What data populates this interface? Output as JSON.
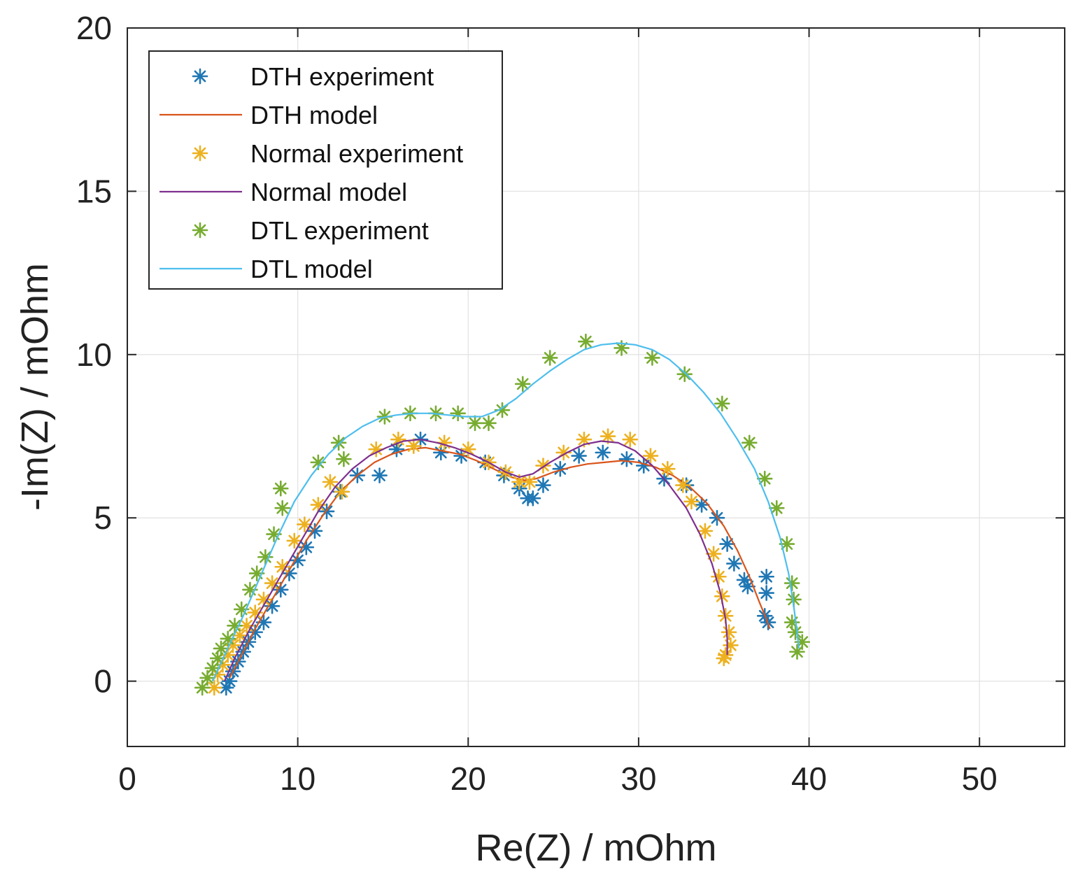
{
  "chart_data": {
    "type": "scatter",
    "title": "",
    "xlabel": "Re(Z) / mOhm",
    "ylabel": "-Im(Z) / mOhm",
    "xlim": [
      0,
      55
    ],
    "ylim": [
      -2,
      20
    ],
    "xticks": [
      0,
      10,
      20,
      30,
      40,
      50
    ],
    "yticks": [
      0,
      5,
      10,
      15,
      20
    ],
    "grid": true,
    "legend_position": "top-left",
    "series": [
      {
        "name": "DTH experiment",
        "kind": "markers",
        "color": "#1f77b4",
        "points": [
          [
            5.8,
            -0.2
          ],
          [
            6.0,
            0.0
          ],
          [
            6.2,
            0.3
          ],
          [
            6.5,
            0.6
          ],
          [
            6.8,
            0.9
          ],
          [
            7.1,
            1.2
          ],
          [
            7.5,
            1.5
          ],
          [
            8.0,
            1.8
          ],
          [
            8.5,
            2.3
          ],
          [
            9.0,
            2.8
          ],
          [
            9.5,
            3.3
          ],
          [
            10.0,
            3.7
          ],
          [
            10.5,
            4.1
          ],
          [
            11.0,
            4.6
          ],
          [
            11.7,
            5.2
          ],
          [
            12.5,
            5.8
          ],
          [
            13.5,
            6.3
          ],
          [
            14.8,
            6.3
          ],
          [
            15.8,
            7.1
          ],
          [
            17.2,
            7.4
          ],
          [
            18.4,
            7.0
          ],
          [
            19.6,
            6.9
          ],
          [
            21.0,
            6.7
          ],
          [
            22.1,
            6.3
          ],
          [
            23.0,
            5.9
          ],
          [
            23.5,
            5.6
          ],
          [
            23.8,
            5.6
          ],
          [
            24.4,
            6.0
          ],
          [
            25.4,
            6.5
          ],
          [
            26.5,
            6.9
          ],
          [
            27.9,
            7.0
          ],
          [
            29.3,
            6.8
          ],
          [
            30.3,
            6.6
          ],
          [
            31.5,
            6.2
          ],
          [
            32.8,
            6.0
          ],
          [
            33.7,
            5.4
          ],
          [
            34.6,
            5.0
          ],
          [
            35.2,
            4.2
          ],
          [
            35.6,
            3.6
          ],
          [
            36.2,
            3.1
          ],
          [
            36.4,
            2.9
          ],
          [
            37.5,
            3.2
          ],
          [
            37.5,
            2.7
          ],
          [
            37.4,
            2.0
          ],
          [
            37.6,
            1.8
          ]
        ]
      },
      {
        "name": "DTH model",
        "kind": "line",
        "color": "#d9541a",
        "points": [
          [
            6.0,
            0.1
          ],
          [
            6.6,
            0.7
          ],
          [
            7.5,
            1.6
          ],
          [
            8.5,
            2.5
          ],
          [
            9.5,
            3.4
          ],
          [
            10.5,
            4.3
          ],
          [
            11.5,
            5.1
          ],
          [
            12.5,
            5.8
          ],
          [
            13.5,
            6.3
          ],
          [
            14.5,
            6.7
          ],
          [
            15.5,
            6.95
          ],
          [
            16.5,
            7.1
          ],
          [
            17.5,
            7.15
          ],
          [
            18.5,
            7.05
          ],
          [
            19.5,
            6.95
          ],
          [
            20.5,
            6.75
          ],
          [
            21.5,
            6.5
          ],
          [
            22.5,
            6.25
          ],
          [
            23.3,
            6.15
          ],
          [
            24.0,
            6.2
          ],
          [
            25.0,
            6.4
          ],
          [
            26.0,
            6.55
          ],
          [
            27.0,
            6.65
          ],
          [
            28.0,
            6.7
          ],
          [
            29.0,
            6.75
          ],
          [
            30.0,
            6.7
          ],
          [
            31.0,
            6.55
          ],
          [
            32.0,
            6.3
          ],
          [
            33.0,
            5.95
          ],
          [
            34.0,
            5.45
          ],
          [
            35.0,
            4.75
          ],
          [
            35.8,
            4.0
          ],
          [
            36.5,
            3.2
          ],
          [
            37.1,
            2.4
          ],
          [
            37.5,
            1.9
          ],
          [
            37.7,
            1.6
          ]
        ]
      },
      {
        "name": "Normal experiment",
        "kind": "markers",
        "color": "#edb120",
        "points": [
          [
            5.1,
            -0.2
          ],
          [
            5.3,
            0.2
          ],
          [
            5.6,
            0.5
          ],
          [
            5.9,
            0.8
          ],
          [
            6.2,
            1.1
          ],
          [
            6.6,
            1.4
          ],
          [
            7.0,
            1.7
          ],
          [
            7.5,
            2.1
          ],
          [
            8.0,
            2.5
          ],
          [
            8.5,
            3.0
          ],
          [
            9.1,
            3.5
          ],
          [
            9.8,
            4.3
          ],
          [
            10.4,
            4.8
          ],
          [
            11.2,
            5.4
          ],
          [
            11.9,
            6.1
          ],
          [
            12.6,
            5.8
          ],
          [
            14.6,
            7.1
          ],
          [
            15.9,
            7.4
          ],
          [
            16.8,
            7.2
          ],
          [
            18.6,
            7.3
          ],
          [
            20.0,
            7.1
          ],
          [
            21.2,
            6.7
          ],
          [
            22.2,
            6.4
          ],
          [
            23.0,
            6.1
          ],
          [
            23.6,
            6.1
          ],
          [
            24.4,
            6.6
          ],
          [
            25.6,
            7.0
          ],
          [
            26.8,
            7.4
          ],
          [
            28.2,
            7.5
          ],
          [
            29.5,
            7.4
          ],
          [
            30.7,
            6.9
          ],
          [
            31.7,
            6.5
          ],
          [
            32.6,
            6.0
          ],
          [
            33.1,
            5.5
          ],
          [
            33.9,
            4.6
          ],
          [
            34.4,
            3.9
          ],
          [
            34.7,
            3.2
          ],
          [
            34.9,
            2.6
          ],
          [
            35.1,
            2.0
          ],
          [
            35.3,
            1.5
          ],
          [
            35.4,
            1.1
          ],
          [
            35.1,
            0.8
          ],
          [
            35.0,
            0.7
          ]
        ]
      },
      {
        "name": "Normal model",
        "kind": "line",
        "color": "#7e2f8e",
        "points": [
          [
            5.7,
            0.0
          ],
          [
            6.3,
            0.7
          ],
          [
            7.2,
            1.6
          ],
          [
            8.2,
            2.5
          ],
          [
            9.2,
            3.4
          ],
          [
            10.2,
            4.3
          ],
          [
            11.2,
            5.2
          ],
          [
            12.2,
            5.95
          ],
          [
            13.2,
            6.5
          ],
          [
            14.2,
            6.9
          ],
          [
            15.2,
            7.15
          ],
          [
            16.2,
            7.35
          ],
          [
            17.2,
            7.4
          ],
          [
            18.2,
            7.3
          ],
          [
            19.2,
            7.15
          ],
          [
            20.2,
            6.95
          ],
          [
            21.2,
            6.7
          ],
          [
            22.2,
            6.4
          ],
          [
            23.0,
            6.25
          ],
          [
            23.8,
            6.35
          ],
          [
            24.8,
            6.7
          ],
          [
            25.8,
            7.0
          ],
          [
            26.8,
            7.25
          ],
          [
            27.8,
            7.35
          ],
          [
            28.8,
            7.3
          ],
          [
            29.8,
            7.05
          ],
          [
            30.8,
            6.6
          ],
          [
            31.8,
            6.0
          ],
          [
            32.8,
            5.3
          ],
          [
            33.6,
            4.5
          ],
          [
            34.3,
            3.6
          ],
          [
            34.8,
            2.7
          ],
          [
            35.1,
            1.9
          ],
          [
            35.2,
            1.3
          ],
          [
            35.2,
            0.8
          ]
        ]
      },
      {
        "name": "DTL experiment",
        "kind": "markers",
        "color": "#77ac30",
        "points": [
          [
            4.4,
            -0.2
          ],
          [
            4.7,
            0.1
          ],
          [
            5.0,
            0.4
          ],
          [
            5.3,
            0.7
          ],
          [
            5.5,
            1.0
          ],
          [
            5.9,
            1.3
          ],
          [
            6.3,
            1.7
          ],
          [
            6.7,
            2.2
          ],
          [
            7.2,
            2.8
          ],
          [
            7.6,
            3.3
          ],
          [
            8.1,
            3.8
          ],
          [
            8.6,
            4.5
          ],
          [
            9.1,
            5.3
          ],
          [
            9.0,
            5.9
          ],
          [
            11.2,
            6.7
          ],
          [
            12.4,
            7.3
          ],
          [
            12.7,
            6.8
          ],
          [
            15.1,
            8.1
          ],
          [
            16.6,
            8.2
          ],
          [
            18.1,
            8.2
          ],
          [
            19.4,
            8.2
          ],
          [
            20.4,
            7.9
          ],
          [
            21.2,
            7.9
          ],
          [
            22.0,
            8.3
          ],
          [
            23.2,
            9.1
          ],
          [
            24.8,
            9.9
          ],
          [
            26.9,
            10.4
          ],
          [
            29.0,
            10.2
          ],
          [
            30.8,
            9.9
          ],
          [
            32.7,
            9.4
          ],
          [
            34.9,
            8.5
          ],
          [
            36.5,
            7.3
          ],
          [
            37.4,
            6.2
          ],
          [
            38.1,
            5.3
          ],
          [
            38.7,
            4.2
          ],
          [
            39.0,
            3.0
          ],
          [
            39.1,
            2.5
          ],
          [
            39.0,
            1.8
          ],
          [
            39.2,
            1.5
          ],
          [
            39.6,
            1.2
          ],
          [
            39.3,
            0.9
          ]
        ]
      },
      {
        "name": "DTL model",
        "kind": "line",
        "color": "#4dbeee",
        "points": [
          [
            5.0,
            0.0
          ],
          [
            5.8,
            0.9
          ],
          [
            6.8,
            2.0
          ],
          [
            7.8,
            3.2
          ],
          [
            8.8,
            4.4
          ],
          [
            9.8,
            5.5
          ],
          [
            10.8,
            6.3
          ],
          [
            11.8,
            6.95
          ],
          [
            12.8,
            7.45
          ],
          [
            13.8,
            7.8
          ],
          [
            14.8,
            8.05
          ],
          [
            15.8,
            8.15
          ],
          [
            16.8,
            8.2
          ],
          [
            17.8,
            8.2
          ],
          [
            18.8,
            8.15
          ],
          [
            19.8,
            8.1
          ],
          [
            20.8,
            8.1
          ],
          [
            21.8,
            8.3
          ],
          [
            22.8,
            8.65
          ],
          [
            23.8,
            9.1
          ],
          [
            24.8,
            9.5
          ],
          [
            25.8,
            9.85
          ],
          [
            26.8,
            10.15
          ],
          [
            27.8,
            10.3
          ],
          [
            28.8,
            10.35
          ],
          [
            29.8,
            10.3
          ],
          [
            30.8,
            10.15
          ],
          [
            31.8,
            9.85
          ],
          [
            32.8,
            9.4
          ],
          [
            33.8,
            8.85
          ],
          [
            34.8,
            8.2
          ],
          [
            35.8,
            7.4
          ],
          [
            36.8,
            6.5
          ],
          [
            37.6,
            5.5
          ],
          [
            38.3,
            4.4
          ],
          [
            38.8,
            3.3
          ],
          [
            39.1,
            2.3
          ],
          [
            39.3,
            1.5
          ],
          [
            39.4,
            1.0
          ]
        ]
      }
    ]
  }
}
